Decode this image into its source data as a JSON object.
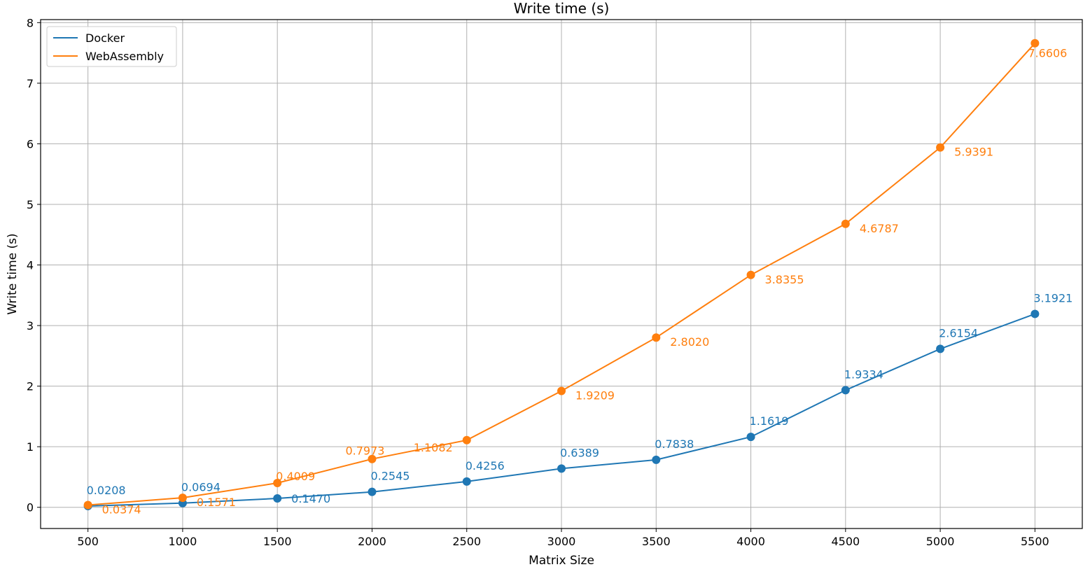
{
  "chart_data": {
    "type": "line",
    "title": "Write time (s)",
    "xlabel": "Matrix Size",
    "ylabel": "Write time (s)",
    "x": [
      500,
      1000,
      1500,
      2000,
      2500,
      3000,
      3500,
      4000,
      4500,
      5000,
      5500
    ],
    "xticks": [
      "500",
      "1000",
      "1500",
      "2000",
      "2500",
      "3000",
      "3500",
      "4000",
      "4500",
      "5000",
      "5500"
    ],
    "yticks": [
      "0",
      "1",
      "2",
      "3",
      "4",
      "5",
      "6",
      "7",
      "8"
    ],
    "xlim": [
      250,
      5750
    ],
    "ylim": [
      -0.35,
      8.05
    ],
    "grid": true,
    "legend_position": "top-left",
    "series": [
      {
        "name": "Docker",
        "color": "#1f77b4",
        "values": [
          0.0208,
          0.0694,
          0.147,
          0.2545,
          0.4256,
          0.6389,
          0.7838,
          1.1619,
          1.9334,
          2.6154,
          3.1921
        ],
        "labels": [
          "0.0208",
          "0.0694",
          "0.1470",
          "0.2545",
          "0.4256",
          "0.6389",
          "0.7838",
          "1.1619",
          "1.9334",
          "2.6154",
          "3.1921"
        ]
      },
      {
        "name": "WebAssembly",
        "color": "#ff7f0e",
        "values": [
          0.0374,
          0.1571,
          0.4009,
          0.7973,
          1.1082,
          1.9209,
          2.802,
          3.8355,
          4.6787,
          5.9391,
          7.6606
        ],
        "labels": [
          "0.0374",
          "0.1571",
          "0.4009",
          "0.7973",
          "1.1082",
          "1.9209",
          "2.8020",
          "3.8355",
          "4.6787",
          "5.9391",
          "7.6606"
        ]
      }
    ]
  }
}
